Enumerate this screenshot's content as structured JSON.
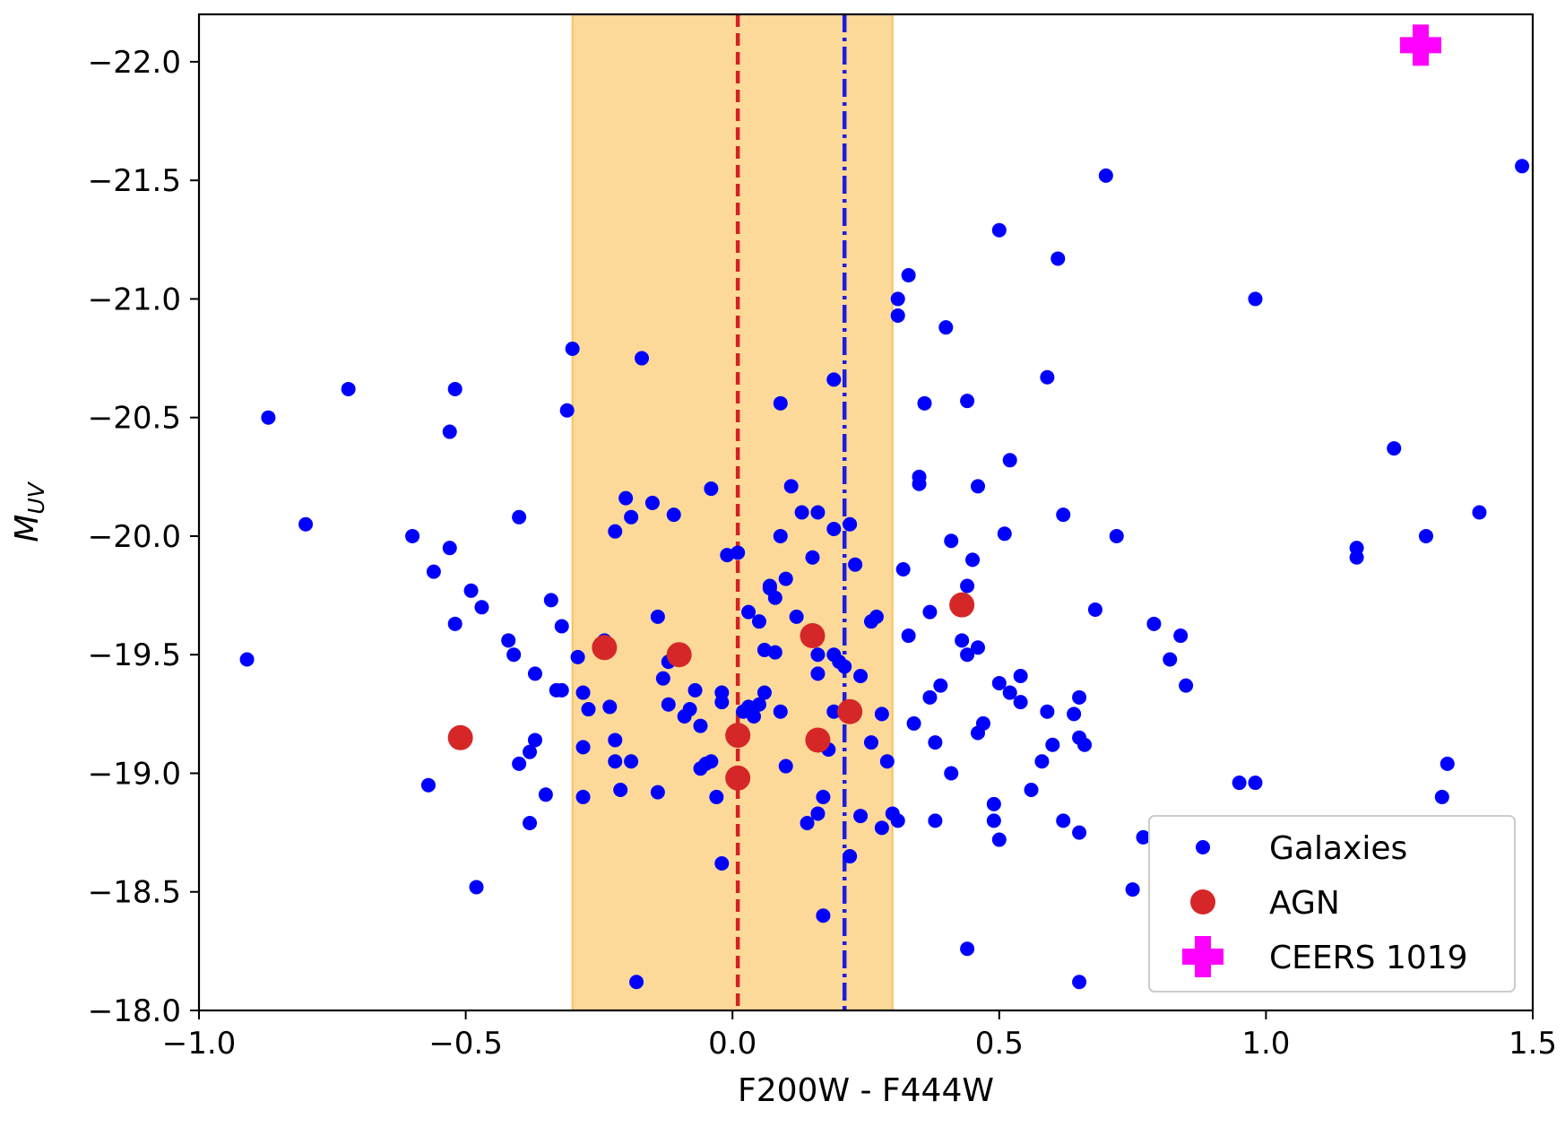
{
  "chart_data": {
    "type": "scatter",
    "title": "",
    "xlabel": "F200W - F444W",
    "ylabel_main": "M",
    "ylabel_sub": "UV",
    "xlim": [
      -1.0,
      1.5
    ],
    "ylim": [
      -18.0,
      -22.2
    ],
    "y_inverted": true,
    "grid": false,
    "legend_position": "bottom-right",
    "x_ticks": [
      {
        "value": -1.0,
        "label": "−1.0"
      },
      {
        "value": -0.5,
        "label": "−0.5"
      },
      {
        "value": 0.0,
        "label": "0.0"
      },
      {
        "value": 0.5,
        "label": "0.5"
      },
      {
        "value": 1.0,
        "label": "1.0"
      },
      {
        "value": 1.5,
        "label": "1.5"
      }
    ],
    "y_ticks": [
      {
        "value": -22.0,
        "label": "−22.0"
      },
      {
        "value": -21.5,
        "label": "−21.5"
      },
      {
        "value": -21.0,
        "label": "−21.0"
      },
      {
        "value": -20.5,
        "label": "−20.5"
      },
      {
        "value": -20.0,
        "label": "−20.0"
      },
      {
        "value": -19.5,
        "label": "−19.5"
      },
      {
        "value": -19.0,
        "label": "−19.0"
      },
      {
        "value": -18.5,
        "label": "−18.5"
      },
      {
        "value": -18.0,
        "label": "−18.0"
      }
    ],
    "shaded_band": {
      "x_range": [
        -0.3,
        0.3
      ],
      "color": "#fcd998",
      "edge_color": "#f7c361"
    },
    "vertical_lines": [
      {
        "x": 0.01,
        "style": "dashed",
        "color": "#d22323"
      },
      {
        "x": 0.21,
        "style": "dashdot",
        "color": "#1c1ce0"
      }
    ],
    "series": [
      {
        "name": "Galaxies",
        "marker": "dot",
        "color": "#0000ff",
        "points": [
          [
            -0.91,
            -19.48
          ],
          [
            -0.87,
            -20.5
          ],
          [
            -0.8,
            -20.05
          ],
          [
            -0.72,
            -20.62
          ],
          [
            -0.6,
            -20.0
          ],
          [
            -0.57,
            -18.95
          ],
          [
            -0.56,
            -19.85
          ],
          [
            -0.53,
            -19.95
          ],
          [
            -0.52,
            -20.62
          ],
          [
            -0.53,
            -20.44
          ],
          [
            -0.52,
            -19.63
          ],
          [
            -0.49,
            -19.77
          ],
          [
            -0.48,
            -18.52
          ],
          [
            -0.47,
            -19.7
          ],
          [
            -0.42,
            -19.56
          ],
          [
            -0.41,
            -19.5
          ],
          [
            -0.4,
            -19.04
          ],
          [
            -0.4,
            -20.08
          ],
          [
            -0.38,
            -19.09
          ],
          [
            -0.38,
            -18.79
          ],
          [
            -0.37,
            -19.14
          ],
          [
            -0.37,
            -19.42
          ],
          [
            -0.35,
            -18.91
          ],
          [
            -0.34,
            -19.73
          ],
          [
            -0.32,
            -19.35
          ],
          [
            -0.33,
            -19.35
          ],
          [
            -0.32,
            -19.62
          ],
          [
            -0.31,
            -20.53
          ],
          [
            -0.3,
            -20.79
          ],
          [
            -0.29,
            -19.49
          ],
          [
            -0.28,
            -19.34
          ],
          [
            -0.28,
            -19.11
          ],
          [
            -0.28,
            -18.9
          ],
          [
            -0.27,
            -19.27
          ],
          [
            -0.24,
            -19.56
          ],
          [
            -0.23,
            -19.28
          ],
          [
            -0.22,
            -20.02
          ],
          [
            -0.22,
            -19.14
          ],
          [
            -0.22,
            -19.05
          ],
          [
            -0.21,
            -18.93
          ],
          [
            -0.2,
            -20.16
          ],
          [
            -0.19,
            -19.05
          ],
          [
            -0.19,
            -20.08
          ],
          [
            -0.18,
            -18.12
          ],
          [
            -0.17,
            -20.75
          ],
          [
            -0.15,
            -20.14
          ],
          [
            -0.14,
            -19.66
          ],
          [
            -0.14,
            -18.92
          ],
          [
            -0.13,
            -19.4
          ],
          [
            -0.12,
            -19.47
          ],
          [
            -0.12,
            -19.29
          ],
          [
            -0.11,
            -20.09
          ],
          [
            -0.09,
            -19.24
          ],
          [
            -0.08,
            -19.27
          ],
          [
            -0.07,
            -19.35
          ],
          [
            -0.06,
            -19.2
          ],
          [
            -0.06,
            -19.02
          ],
          [
            -0.05,
            -19.04
          ],
          [
            -0.04,
            -20.2
          ],
          [
            -0.04,
            -19.05
          ],
          [
            -0.03,
            -18.9
          ],
          [
            -0.02,
            -19.34
          ],
          [
            -0.02,
            -19.3
          ],
          [
            -0.02,
            -18.62
          ],
          [
            -0.01,
            -19.92
          ],
          [
            0.01,
            -19.93
          ],
          [
            0.02,
            -19.26
          ],
          [
            0.03,
            -19.68
          ],
          [
            0.03,
            -19.28
          ],
          [
            0.04,
            -19.24
          ],
          [
            0.05,
            -19.29
          ],
          [
            0.05,
            -19.64
          ],
          [
            0.06,
            -19.34
          ],
          [
            0.06,
            -19.52
          ],
          [
            0.07,
            -19.78
          ],
          [
            0.07,
            -19.79
          ],
          [
            0.08,
            -19.51
          ],
          [
            0.08,
            -19.74
          ],
          [
            0.09,
            -19.26
          ],
          [
            0.09,
            -20.56
          ],
          [
            0.09,
            -20.0
          ],
          [
            0.1,
            -19.82
          ],
          [
            0.1,
            -19.03
          ],
          [
            0.11,
            -20.21
          ],
          [
            0.12,
            -19.66
          ],
          [
            0.13,
            -20.1
          ],
          [
            0.14,
            -18.79
          ],
          [
            0.15,
            -19.91
          ],
          [
            0.16,
            -20.1
          ],
          [
            0.16,
            -19.5
          ],
          [
            0.16,
            -19.42
          ],
          [
            0.16,
            -18.83
          ],
          [
            0.17,
            -18.9
          ],
          [
            0.17,
            -18.4
          ],
          [
            0.18,
            -19.1
          ],
          [
            0.19,
            -20.03
          ],
          [
            0.19,
            -19.26
          ],
          [
            0.19,
            -19.5
          ],
          [
            0.19,
            -20.66
          ],
          [
            0.2,
            -19.47
          ],
          [
            0.21,
            -19.45
          ],
          [
            0.22,
            -20.05
          ],
          [
            0.22,
            -18.65
          ],
          [
            0.23,
            -19.88
          ],
          [
            0.24,
            -19.41
          ],
          [
            0.24,
            -18.82
          ],
          [
            0.26,
            -19.13
          ],
          [
            0.26,
            -19.64
          ],
          [
            0.27,
            -19.66
          ],
          [
            0.28,
            -19.25
          ],
          [
            0.28,
            -18.77
          ],
          [
            0.29,
            -19.05
          ],
          [
            0.3,
            -18.83
          ],
          [
            0.31,
            -18.8
          ],
          [
            0.31,
            -20.93
          ],
          [
            0.31,
            -21.0
          ],
          [
            0.32,
            -19.86
          ],
          [
            0.33,
            -19.58
          ],
          [
            0.33,
            -21.1
          ],
          [
            0.34,
            -19.21
          ],
          [
            0.35,
            -20.25
          ],
          [
            0.35,
            -20.22
          ],
          [
            0.36,
            -20.56
          ],
          [
            0.37,
            -19.32
          ],
          [
            0.37,
            -19.68
          ],
          [
            0.38,
            -19.13
          ],
          [
            0.38,
            -18.8
          ],
          [
            0.39,
            -19.37
          ],
          [
            0.4,
            -20.88
          ],
          [
            0.41,
            -19.0
          ],
          [
            0.41,
            -19.98
          ],
          [
            0.43,
            -19.56
          ],
          [
            0.44,
            -19.5
          ],
          [
            0.44,
            -20.57
          ],
          [
            0.44,
            -19.79
          ],
          [
            0.44,
            -18.26
          ],
          [
            0.45,
            -19.9
          ],
          [
            0.46,
            -19.17
          ],
          [
            0.46,
            -20.21
          ],
          [
            0.46,
            -19.53
          ],
          [
            0.47,
            -19.21
          ],
          [
            0.49,
            -18.87
          ],
          [
            0.49,
            -18.8
          ],
          [
            0.5,
            -19.38
          ],
          [
            0.5,
            -18.72
          ],
          [
            0.5,
            -21.29
          ],
          [
            0.51,
            -20.01
          ],
          [
            0.52,
            -20.32
          ],
          [
            0.52,
            -19.34
          ],
          [
            0.54,
            -19.3
          ],
          [
            0.54,
            -19.41
          ],
          [
            0.56,
            -18.93
          ],
          [
            0.58,
            -19.05
          ],
          [
            0.59,
            -19.26
          ],
          [
            0.6,
            -19.12
          ],
          [
            0.59,
            -20.67
          ],
          [
            0.61,
            -21.17
          ],
          [
            0.62,
            -20.09
          ],
          [
            0.62,
            -18.8
          ],
          [
            0.64,
            -19.25
          ],
          [
            0.65,
            -19.32
          ],
          [
            0.65,
            -19.15
          ],
          [
            0.65,
            -18.75
          ],
          [
            0.66,
            -19.12
          ],
          [
            0.68,
            -19.69
          ],
          [
            0.65,
            -18.12
          ],
          [
            0.7,
            -21.52
          ],
          [
            0.72,
            -20.0
          ],
          [
            0.75,
            -18.51
          ],
          [
            0.77,
            -18.73
          ],
          [
            0.79,
            -19.63
          ],
          [
            0.82,
            -19.48
          ],
          [
            0.84,
            -19.58
          ],
          [
            0.85,
            -19.37
          ],
          [
            0.95,
            -18.96
          ],
          [
            0.98,
            -18.96
          ],
          [
            0.98,
            -21.0
          ],
          [
            1.17,
            -19.95
          ],
          [
            1.17,
            -19.91
          ],
          [
            1.24,
            -20.37
          ],
          [
            1.3,
            -20.0
          ],
          [
            1.33,
            -18.9
          ],
          [
            1.34,
            -19.04
          ],
          [
            1.4,
            -20.1
          ],
          [
            1.48,
            -21.56
          ]
        ]
      },
      {
        "name": "AGN",
        "marker": "dot-large",
        "color": "#d62728",
        "points": [
          [
            -0.51,
            -19.15
          ],
          [
            -0.24,
            -19.53
          ],
          [
            -0.1,
            -19.5
          ],
          [
            0.01,
            -19.16
          ],
          [
            0.01,
            -18.98
          ],
          [
            0.15,
            -19.58
          ],
          [
            0.16,
            -19.14
          ],
          [
            0.22,
            -19.26
          ],
          [
            0.43,
            -19.71
          ]
        ]
      },
      {
        "name": "CEERS 1019",
        "marker": "plus",
        "color": "#ff00ff",
        "points": [
          [
            1.29,
            -22.07
          ]
        ]
      }
    ],
    "legend": [
      {
        "label": "Galaxies",
        "marker": "dot",
        "color": "#0000ff"
      },
      {
        "label": "AGN",
        "marker": "dot-large",
        "color": "#d62728"
      },
      {
        "label": "CEERS 1019",
        "marker": "plus",
        "color": "#ff00ff"
      }
    ]
  }
}
